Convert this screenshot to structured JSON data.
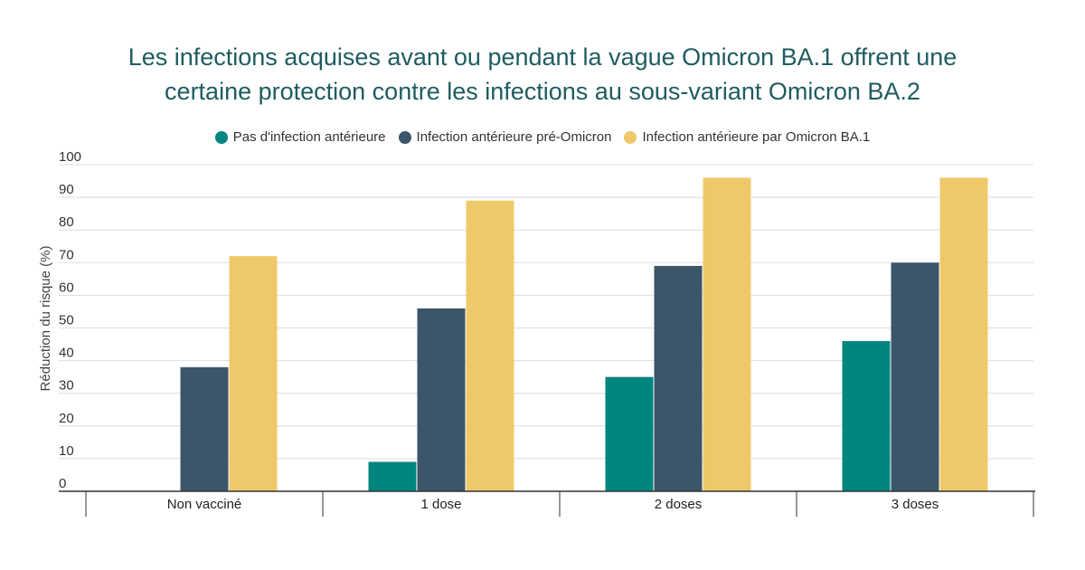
{
  "colors": {
    "title": "#1f5c60",
    "series": [
      "#00857f",
      "#3b5569",
      "#eec969"
    ],
    "grid": "#dddddd",
    "axis": "#333333"
  },
  "chart_data": {
    "type": "bar",
    "title_lines": [
      "Les infections acquises avant ou pendant la vague Omicron BA.1 offrent une",
      "certaine protection contre les infections au sous-variant Omicron BA.2"
    ],
    "categories": [
      "Non vacciné",
      "1 dose",
      "2 doses",
      "3 doses"
    ],
    "series": [
      {
        "name": "Pas d'infection antérieure",
        "values": [
          0,
          9,
          35,
          46
        ]
      },
      {
        "name": "Infection antérieure pré-Omicron",
        "values": [
          38,
          56,
          69,
          70
        ]
      },
      {
        "name": "Infection antérieure par Omicron BA.1",
        "values": [
          72,
          89,
          96,
          96
        ]
      }
    ],
    "ylabel": "Réduction du risque (%)",
    "xlabel": "",
    "ylim": [
      0,
      100
    ],
    "yticks": [
      0,
      10,
      20,
      30,
      40,
      50,
      60,
      70,
      80,
      90,
      100
    ],
    "grid": true,
    "legend_position": "top"
  }
}
